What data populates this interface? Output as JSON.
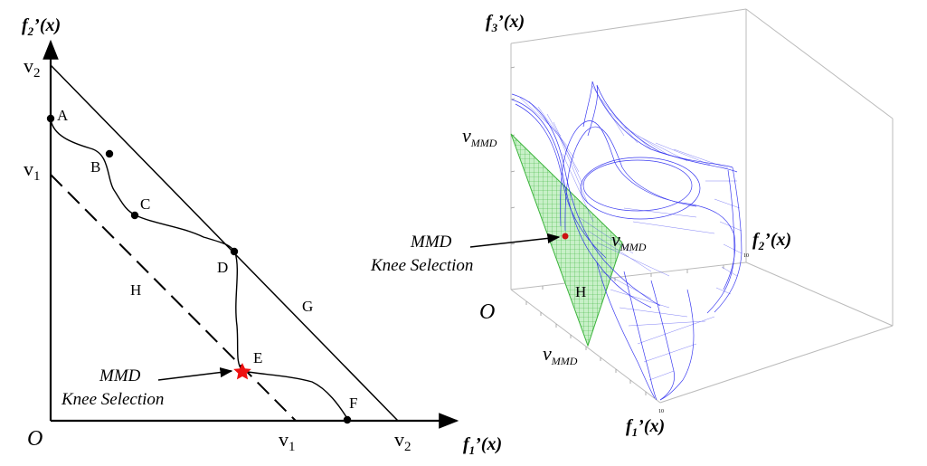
{
  "left_panel": {
    "origin_label": "O",
    "y_axis": {
      "main": "f",
      "sub": "2",
      "rest": "’(x)"
    },
    "x_axis": {
      "main": "f",
      "sub": "1",
      "rest": "’(x)"
    },
    "y_ticks": [
      {
        "main": "v",
        "sub": "2"
      },
      {
        "main": "v",
        "sub": "1"
      }
    ],
    "x_ticks": [
      {
        "main": "v",
        "sub": "1"
      },
      {
        "main": "v",
        "sub": "2"
      }
    ],
    "points": [
      "A",
      "B",
      "C",
      "D",
      "E",
      "F"
    ],
    "line_g_label": "G",
    "line_h_label": "H",
    "annotation": {
      "line1": "MMD",
      "line2": "Knee Selection"
    },
    "colors": {
      "curve": "#000000",
      "knee_star": "#ee1111"
    }
  },
  "right_panel": {
    "origin_label": "O",
    "z_axis": {
      "main": "f",
      "sub": "3",
      "rest": "’(x)"
    },
    "y_axis": {
      "main": "f",
      "sub": "2",
      "rest": "’(x)"
    },
    "x_axis": {
      "main": "f",
      "sub": "1",
      "rest": "’(x)"
    },
    "v_labels": [
      {
        "main": "v",
        "sub": "MMD"
      },
      {
        "main": "v",
        "sub": "MMD"
      },
      {
        "main": "v",
        "sub": "MMD"
      }
    ],
    "plane_label": "H",
    "annotation": {
      "line1": "MMD",
      "line2": "Knee Selection"
    },
    "axis_tick_labels": {
      "x_end": "10",
      "y_end": "10"
    },
    "colors": {
      "surface": "#1a1aee",
      "plane_fill": "#c8f0c8",
      "plane_grid": "#3cb43c",
      "knee_dot": "#cc1111"
    }
  }
}
